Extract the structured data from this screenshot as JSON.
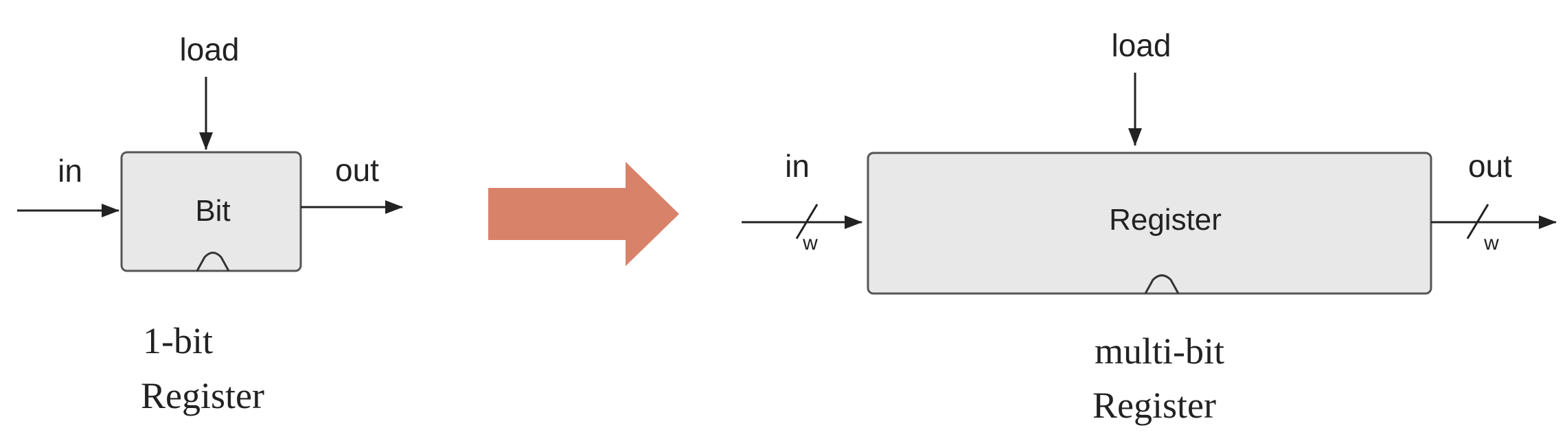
{
  "left_diagram": {
    "chip_label": "Bit",
    "load_label": "load",
    "in_label": "in",
    "out_label": "out",
    "caption_line1": "1-bit",
    "caption_line2": "Register"
  },
  "right_diagram": {
    "chip_label": "Register",
    "load_label": "load",
    "in_label": "in",
    "out_label": "out",
    "in_width_label": "w",
    "out_width_label": "w",
    "caption_line1": "multi-bit",
    "caption_line2": "Register"
  },
  "colors": {
    "chip_fill": "#e8e8e8",
    "chip_stroke": "#555555",
    "wire": "#222222",
    "transition_arrow": "#d9826a"
  }
}
